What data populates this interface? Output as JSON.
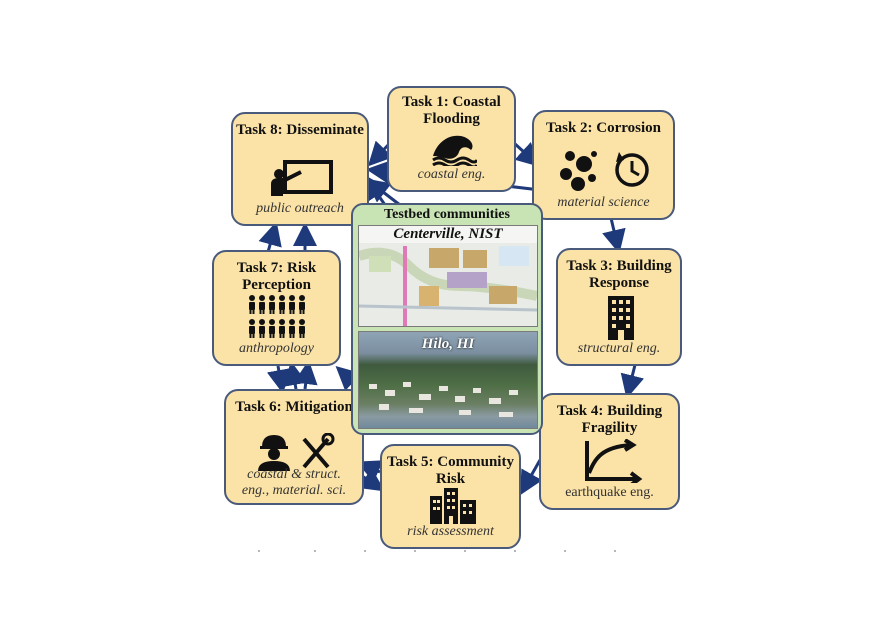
{
  "center": {
    "title": "Testbed communities",
    "photo1_label": "Centerville, NIST",
    "photo2_label": "Hilo, HI"
  },
  "tasks": [
    {
      "title": "Task 1: Coastal Flooding",
      "subtitle": "coastal eng.",
      "icon": "wave-icon"
    },
    {
      "title": "Task 2: Corrosion",
      "subtitle": "material science",
      "icon": "corrosion-icon"
    },
    {
      "title": "Task 3: Building Response",
      "subtitle": "structural eng.",
      "icon": "building-icon"
    },
    {
      "title": "Task 4: Building Fragility",
      "subtitle": "earthquake eng.",
      "icon": "fragility-curve-icon"
    },
    {
      "title": "Task 5: Community Risk",
      "subtitle": "risk assessment",
      "icon": "city-icon"
    },
    {
      "title": "Task 6: Mitigation",
      "subtitle": "coastal & struct. eng., material. sci.",
      "icon": "engineer-tools-icon"
    },
    {
      "title": "Task 7: Risk Perception",
      "subtitle": "anthropology",
      "icon": "people-icon"
    },
    {
      "title": "Task 8: Disseminate",
      "subtitle": "public outreach",
      "icon": "presentation-icon"
    }
  ],
  "colors": {
    "box_fill": "#fbe3a8",
    "box_border": "#4a5a7a",
    "center_fill": "#c8e3b4",
    "arrow": "#1f3a7a"
  }
}
